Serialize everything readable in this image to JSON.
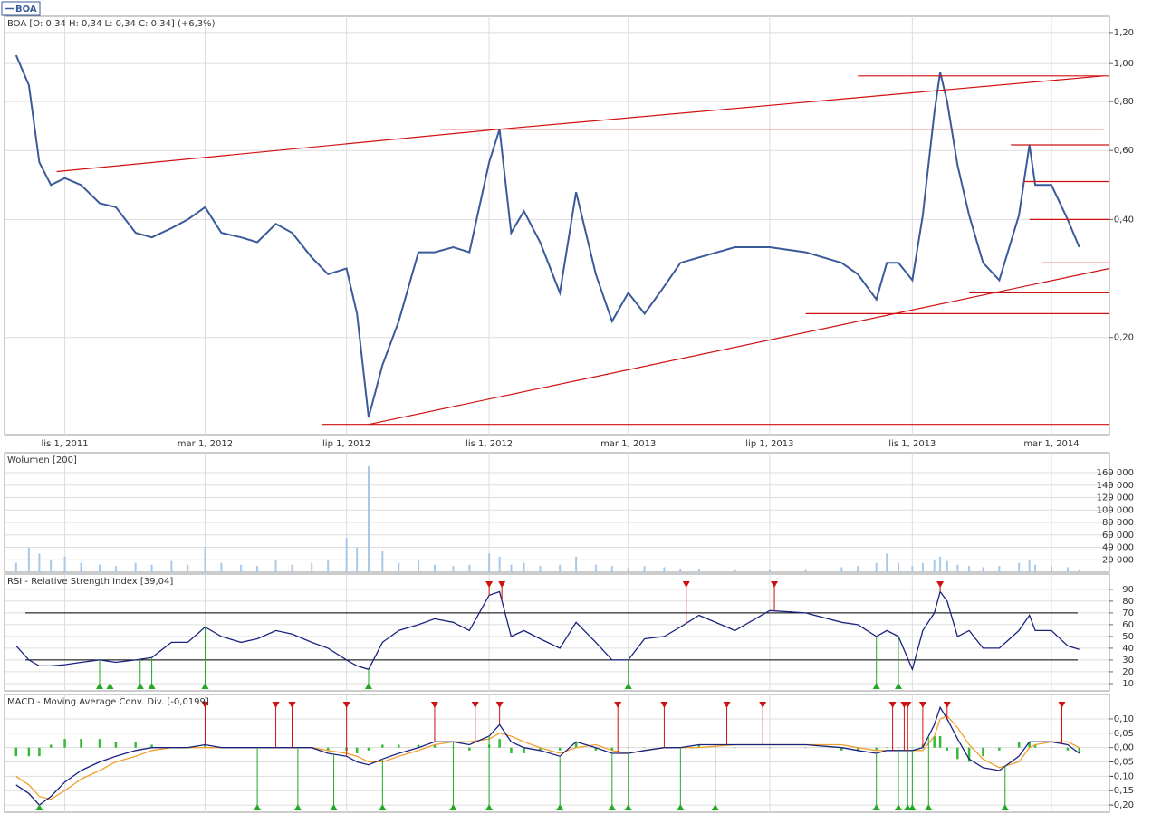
{
  "chart_data": [
    {
      "type": "line",
      "title": "BOA [O: 0,34  H: 0,34  L: 0,34  C: 0,34] (+6,3%)",
      "log_scale": true,
      "grid": true,
      "xlim": [
        "2011-09-10",
        "2014-04-20"
      ],
      "xticks": [
        {
          "value": "2011-11-01",
          "label": "lis 1, 2011"
        },
        {
          "value": "2012-03-01",
          "label": "mar 1, 2012"
        },
        {
          "value": "2012-07-01",
          "label": "lip 1, 2012"
        },
        {
          "value": "2012-11-01",
          "label": "lis 1, 2012"
        },
        {
          "value": "2013-03-01",
          "label": "mar 1, 2013"
        },
        {
          "value": "2013-07-01",
          "label": "lip 1, 2013"
        },
        {
          "value": "2013-11-01",
          "label": "lis 1, 2013"
        },
        {
          "value": "2014-03-01",
          "label": "mar 1, 2014"
        }
      ],
      "ylim": [
        0.113,
        1.32
      ],
      "yticks": [
        {
          "value": 0.2,
          "label": "0,20"
        },
        {
          "value": 0.4,
          "label": "0,40"
        },
        {
          "value": 0.6,
          "label": "0,60"
        },
        {
          "value": 0.8,
          "label": "0,80"
        },
        {
          "value": 1.0,
          "label": "1,00"
        },
        {
          "value": 1.2,
          "label": "1,20"
        }
      ],
      "x": [
        "2011-09-20",
        "2011-10-01",
        "2011-10-10",
        "2011-10-20",
        "2011-11-01",
        "2011-11-15",
        "2011-12-01",
        "2011-12-15",
        "2012-01-01",
        "2012-01-15",
        "2012-02-01",
        "2012-02-15",
        "2012-03-01",
        "2012-03-15",
        "2012-04-01",
        "2012-04-15",
        "2012-05-01",
        "2012-05-15",
        "2012-06-01",
        "2012-06-15",
        "2012-07-01",
        "2012-07-10",
        "2012-07-20",
        "2012-08-01",
        "2012-08-15",
        "2012-09-01",
        "2012-09-15",
        "2012-10-01",
        "2012-10-15",
        "2012-11-01",
        "2012-11-10",
        "2012-11-20",
        "2012-12-01",
        "2012-12-15",
        "2013-01-01",
        "2013-01-15",
        "2013-02-01",
        "2013-02-15",
        "2013-03-01",
        "2013-03-15",
        "2013-04-01",
        "2013-04-15",
        "2013-05-01",
        "2013-06-01",
        "2013-07-01",
        "2013-08-01",
        "2013-09-01",
        "2013-09-15",
        "2013-10-01",
        "2013-10-10",
        "2013-10-20",
        "2013-11-01",
        "2013-11-10",
        "2013-11-20",
        "2013-11-25",
        "2013-12-01",
        "2013-12-10",
        "2013-12-20",
        "2014-01-01",
        "2014-01-15",
        "2014-02-01",
        "2014-02-10",
        "2014-02-15",
        "2014-03-01",
        "2014-03-15",
        "2014-03-25"
      ],
      "series": [
        {
          "name": "BOA",
          "color": "#3a5a9a",
          "values": [
            1.05,
            0.88,
            0.56,
            0.49,
            0.51,
            0.49,
            0.44,
            0.43,
            0.37,
            0.36,
            0.38,
            0.4,
            0.43,
            0.37,
            0.36,
            0.35,
            0.39,
            0.37,
            0.32,
            0.29,
            0.3,
            0.23,
            0.125,
            0.17,
            0.22,
            0.33,
            0.33,
            0.34,
            0.33,
            0.56,
            0.68,
            0.37,
            0.42,
            0.35,
            0.26,
            0.47,
            0.29,
            0.22,
            0.26,
            0.23,
            0.27,
            0.31,
            0.32,
            0.34,
            0.34,
            0.33,
            0.31,
            0.29,
            0.25,
            0.31,
            0.31,
            0.28,
            0.41,
            0.75,
            0.95,
            0.8,
            0.55,
            0.41,
            0.31,
            0.28,
            0.41,
            0.62,
            0.49,
            0.49,
            0.4,
            0.34
          ]
        }
      ],
      "trendlines_color": "#d01010",
      "trendlines": [
        {
          "x": [
            "2011-10-25",
            "2012-11-10"
          ],
          "y": [
            0.53,
            0.68
          ]
        },
        {
          "x": [
            "2012-09-20",
            "2014-04-15"
          ],
          "y": [
            0.68,
            0.68
          ]
        },
        {
          "x": [
            "2012-11-10",
            "2014-04-15"
          ],
          "y": [
            0.68,
            0.93
          ]
        },
        {
          "x": [
            "2013-09-15",
            "2014-04-20"
          ],
          "y": [
            0.93,
            0.93
          ]
        },
        {
          "x": [
            "2014-01-25",
            "2014-04-20"
          ],
          "y": [
            0.62,
            0.62
          ]
        },
        {
          "x": [
            "2014-02-05",
            "2014-04-20"
          ],
          "y": [
            0.5,
            0.5
          ]
        },
        {
          "x": [
            "2014-02-10",
            "2014-04-20"
          ],
          "y": [
            0.4,
            0.4
          ]
        },
        {
          "x": [
            "2014-02-20",
            "2014-04-20"
          ],
          "y": [
            0.31,
            0.31
          ]
        },
        {
          "x": [
            "2013-12-20",
            "2014-04-20"
          ],
          "y": [
            0.26,
            0.26
          ]
        },
        {
          "x": [
            "2013-08-01",
            "2014-04-20"
          ],
          "y": [
            0.23,
            0.23
          ]
        },
        {
          "x": [
            "2012-07-20",
            "2014-04-20"
          ],
          "y": [
            0.12,
            0.3
          ]
        },
        {
          "x": [
            "2012-06-10",
            "2014-04-20"
          ],
          "y": [
            0.12,
            0.12
          ]
        }
      ]
    },
    {
      "type": "bar",
      "title": "Wolumen [200]",
      "color": "#a8c8e8",
      "grid": true,
      "xlim": [
        "2011-09-10",
        "2014-04-20"
      ],
      "ylim": [
        0,
        192000
      ],
      "yticks": [
        {
          "value": 20000,
          "label": "20 000"
        },
        {
          "value": 40000,
          "label": "40 000"
        },
        {
          "value": 60000,
          "label": "60 000"
        },
        {
          "value": 80000,
          "label": "80 000"
        },
        {
          "value": 100000,
          "label": "100 000"
        },
        {
          "value": 120000,
          "label": "120 000"
        },
        {
          "value": 140000,
          "label": "140 000"
        },
        {
          "value": 160000,
          "label": "160 000"
        }
      ],
      "x": [
        "2011-09-20",
        "2011-10-01",
        "2011-10-10",
        "2011-10-20",
        "2011-11-01",
        "2011-11-15",
        "2011-12-01",
        "2011-12-15",
        "2012-01-01",
        "2012-01-15",
        "2012-02-01",
        "2012-02-15",
        "2012-03-01",
        "2012-03-15",
        "2012-04-01",
        "2012-04-15",
        "2012-05-01",
        "2012-05-15",
        "2012-06-01",
        "2012-06-15",
        "2012-07-01",
        "2012-07-10",
        "2012-07-20",
        "2012-08-01",
        "2012-08-15",
        "2012-09-01",
        "2012-09-15",
        "2012-10-01",
        "2012-10-15",
        "2012-11-01",
        "2012-11-10",
        "2012-11-20",
        "2012-12-01",
        "2012-12-15",
        "2013-01-01",
        "2013-01-15",
        "2013-02-01",
        "2013-02-15",
        "2013-03-01",
        "2013-03-15",
        "2013-04-01",
        "2013-04-15",
        "2013-05-01",
        "2013-06-01",
        "2013-07-01",
        "2013-08-01",
        "2013-09-01",
        "2013-09-15",
        "2013-10-01",
        "2013-10-10",
        "2013-10-20",
        "2013-11-01",
        "2013-11-10",
        "2013-11-20",
        "2013-11-25",
        "2013-12-01",
        "2013-12-10",
        "2013-12-20",
        "2014-01-01",
        "2014-01-15",
        "2014-02-01",
        "2014-02-10",
        "2014-02-15",
        "2014-03-01",
        "2014-03-15",
        "2014-03-25"
      ],
      "values": [
        15000,
        40000,
        30000,
        20000,
        25000,
        15000,
        12000,
        10000,
        15000,
        12000,
        18000,
        12000,
        40000,
        15000,
        12000,
        10000,
        20000,
        12000,
        15000,
        20000,
        55000,
        40000,
        170000,
        35000,
        15000,
        20000,
        12000,
        10000,
        12000,
        30000,
        25000,
        12000,
        15000,
        10000,
        12000,
        25000,
        12000,
        10000,
        8000,
        10000,
        8000,
        6000,
        6000,
        5000,
        5000,
        5000,
        8000,
        10000,
        15000,
        30000,
        15000,
        10000,
        15000,
        20000,
        25000,
        18000,
        12000,
        10000,
        8000,
        10000,
        15000,
        20000,
        12000,
        10000,
        8000,
        5000
      ]
    },
    {
      "type": "line",
      "title": "RSI - Relative Strength Index [39,04]",
      "grid": true,
      "xlim": [
        "2011-09-10",
        "2014-04-20"
      ],
      "ylim": [
        3.8,
        103
      ],
      "yticks": [
        10,
        20,
        30,
        40,
        50,
        60,
        70,
        80,
        90
      ],
      "levels": [
        30,
        70
      ],
      "x": [
        "2011-09-20",
        "2011-10-01",
        "2011-10-10",
        "2011-10-20",
        "2011-11-01",
        "2011-11-15",
        "2011-12-01",
        "2011-12-15",
        "2012-01-01",
        "2012-01-15",
        "2012-02-01",
        "2012-02-15",
        "2012-03-01",
        "2012-03-15",
        "2012-04-01",
        "2012-04-15",
        "2012-05-01",
        "2012-05-15",
        "2012-06-01",
        "2012-06-15",
        "2012-07-01",
        "2012-07-10",
        "2012-07-20",
        "2012-08-01",
        "2012-08-15",
        "2012-09-01",
        "2012-09-15",
        "2012-10-01",
        "2012-10-15",
        "2012-11-01",
        "2012-11-10",
        "2012-11-20",
        "2012-12-01",
        "2012-12-15",
        "2013-01-01",
        "2013-01-15",
        "2013-02-01",
        "2013-02-15",
        "2013-03-01",
        "2013-03-15",
        "2013-04-01",
        "2013-04-15",
        "2013-05-01",
        "2013-06-01",
        "2013-07-01",
        "2013-08-01",
        "2013-09-01",
        "2013-09-15",
        "2013-10-01",
        "2013-10-10",
        "2013-10-20",
        "2013-11-01",
        "2013-11-10",
        "2013-11-20",
        "2013-11-25",
        "2013-12-01",
        "2013-12-10",
        "2013-12-20",
        "2014-01-01",
        "2014-01-15",
        "2014-02-01",
        "2014-02-10",
        "2014-02-15",
        "2014-03-01",
        "2014-03-15",
        "2014-03-25"
      ],
      "series": [
        {
          "color": "#1a237e",
          "values": [
            42,
            30,
            25,
            25,
            26,
            28,
            30,
            28,
            30,
            32,
            45,
            45,
            58,
            50,
            45,
            48,
            55,
            52,
            45,
            40,
            30,
            25,
            22,
            45,
            55,
            60,
            65,
            62,
            55,
            85,
            88,
            50,
            55,
            48,
            40,
            62,
            45,
            30,
            30,
            48,
            50,
            58,
            68,
            55,
            72,
            70,
            62,
            60,
            50,
            55,
            50,
            22,
            55,
            70,
            88,
            80,
            50,
            55,
            40,
            40,
            55,
            68,
            55,
            55,
            42,
            39.04
          ]
        }
      ],
      "sell_signals": [
        "2012-11-01",
        "2012-11-12",
        "2013-04-20",
        "2013-07-05",
        "2013-11-25"
      ],
      "buy_signals": [
        "2011-12-01",
        "2011-12-10",
        "2012-01-05",
        "2012-01-15",
        "2012-03-01",
        "2012-07-20",
        "2013-03-01",
        "2013-10-01",
        "2013-10-20"
      ]
    },
    {
      "type": "line",
      "title": "MACD - Moving Average Conv. Div. [-0,0199]",
      "grid": true,
      "xlim": [
        "2011-09-10",
        "2014-04-20"
      ],
      "ylim": [
        -0.225,
        0.185
      ],
      "yticks": [
        {
          "value": -0.2,
          "label": "-0,20"
        },
        {
          "value": -0.15,
          "label": "-0,15"
        },
        {
          "value": -0.1,
          "label": "-0,10"
        },
        {
          "value": -0.05,
          "label": "-0,05"
        },
        {
          "value": 0,
          "label": "0,00"
        },
        {
          "value": 0.05,
          "label": "0,05"
        },
        {
          "value": 0.1,
          "label": "0,10"
        }
      ],
      "x": [
        "2011-09-20",
        "2011-10-01",
        "2011-10-10",
        "2011-10-20",
        "2011-11-01",
        "2011-11-15",
        "2011-12-01",
        "2011-12-15",
        "2012-01-01",
        "2012-01-15",
        "2012-02-01",
        "2012-02-15",
        "2012-03-01",
        "2012-03-15",
        "2012-04-01",
        "2012-04-15",
        "2012-05-01",
        "2012-05-15",
        "2012-06-01",
        "2012-06-15",
        "2012-07-01",
        "2012-07-10",
        "2012-07-20",
        "2012-08-01",
        "2012-08-15",
        "2012-09-01",
        "2012-09-15",
        "2012-10-01",
        "2012-10-15",
        "2012-11-01",
        "2012-11-10",
        "2012-11-20",
        "2012-12-01",
        "2012-12-15",
        "2013-01-01",
        "2013-01-15",
        "2013-02-01",
        "2013-02-15",
        "2013-03-01",
        "2013-03-15",
        "2013-04-01",
        "2013-04-15",
        "2013-05-01",
        "2013-06-01",
        "2013-07-01",
        "2013-08-01",
        "2013-09-01",
        "2013-09-15",
        "2013-10-01",
        "2013-10-10",
        "2013-10-20",
        "2013-11-01",
        "2013-11-10",
        "2013-11-20",
        "2013-11-25",
        "2013-12-01",
        "2013-12-10",
        "2013-12-20",
        "2014-01-01",
        "2014-01-15",
        "2014-02-01",
        "2014-02-10",
        "2014-02-15",
        "2014-03-01",
        "2014-03-15",
        "2014-03-25"
      ],
      "series": [
        {
          "type": "bar",
          "color": "#33bb33",
          "values": [
            -0.03,
            -0.03,
            -0.03,
            0.01,
            0.03,
            0.03,
            0.03,
            0.02,
            0.02,
            0.01,
            0,
            0,
            0.01,
            0,
            0,
            0,
            0,
            0,
            0,
            -0.01,
            -0.01,
            -0.02,
            -0.01,
            0.01,
            0.01,
            0.01,
            0.01,
            0,
            -0.01,
            0.01,
            0.03,
            -0.02,
            -0.02,
            -0.01,
            -0.01,
            0.02,
            -0.01,
            -0.01,
            0,
            0,
            0,
            0,
            0.01,
            0,
            0,
            0,
            -0.01,
            -0.01,
            -0.01,
            0,
            0,
            0,
            0.01,
            0.04,
            0.04,
            -0.01,
            -0.04,
            -0.05,
            -0.03,
            -0.01,
            0.02,
            0.02,
            0.01,
            0,
            -0.01,
            -0.02
          ]
        },
        {
          "color": "#f0a030",
          "values": [
            -0.1,
            -0.13,
            -0.17,
            -0.18,
            -0.15,
            -0.11,
            -0.08,
            -0.05,
            -0.03,
            -0.01,
            0,
            0,
            0,
            0,
            0,
            0,
            0,
            0,
            0,
            -0.01,
            -0.02,
            -0.03,
            -0.05,
            -0.05,
            -0.03,
            -0.01,
            0.01,
            0.02,
            0.02,
            0.03,
            0.05,
            0.04,
            0.02,
            0,
            -0.02,
            0,
            0.01,
            -0.01,
            -0.02,
            -0.01,
            0,
            0,
            0,
            0.01,
            0.01,
            0.01,
            0.01,
            0,
            -0.01,
            -0.01,
            -0.01,
            -0.01,
            -0.01,
            0.04,
            0.1,
            0.11,
            0.07,
            0.01,
            -0.04,
            -0.07,
            -0.05,
            0,
            0.01,
            0.02,
            0.02,
            0
          ]
        },
        {
          "color": "#1a237e",
          "values": [
            -0.13,
            -0.16,
            -0.2,
            -0.17,
            -0.12,
            -0.08,
            -0.05,
            -0.03,
            -0.01,
            0,
            0,
            0,
            0.01,
            0,
            0,
            0,
            0,
            0,
            0,
            -0.02,
            -0.03,
            -0.05,
            -0.06,
            -0.04,
            -0.02,
            0,
            0.02,
            0.02,
            0.01,
            0.04,
            0.08,
            0.02,
            0,
            -0.01,
            -0.03,
            0.02,
            0,
            -0.02,
            -0.02,
            -0.01,
            0,
            0,
            0.01,
            0.01,
            0.01,
            0.01,
            0,
            -0.01,
            -0.02,
            -0.01,
            -0.01,
            -0.01,
            0,
            0.08,
            0.14,
            0.1,
            0.03,
            -0.04,
            -0.07,
            -0.08,
            -0.03,
            0.02,
            0.02,
            0.02,
            0.01,
            -0.0199
          ]
        }
      ],
      "sell_signals": [
        "2012-03-01",
        "2012-05-01",
        "2012-05-15",
        "2012-07-01",
        "2012-09-15",
        "2012-10-20",
        "2012-11-10",
        "2013-02-20",
        "2013-04-01",
        "2013-05-25",
        "2013-06-25",
        "2013-10-15",
        "2013-10-25",
        "2013-10-28",
        "2013-11-10",
        "2013-12-01",
        "2014-03-10"
      ],
      "buy_signals": [
        "2011-10-10",
        "2012-04-15",
        "2012-05-20",
        "2012-06-20",
        "2012-08-01",
        "2012-10-01",
        "2012-11-01",
        "2013-01-01",
        "2013-02-15",
        "2013-03-01",
        "2013-04-15",
        "2013-05-15",
        "2013-10-01",
        "2013-10-20",
        "2013-10-28",
        "2013-11-01",
        "2013-11-15",
        "2014-01-20"
      ]
    }
  ]
}
